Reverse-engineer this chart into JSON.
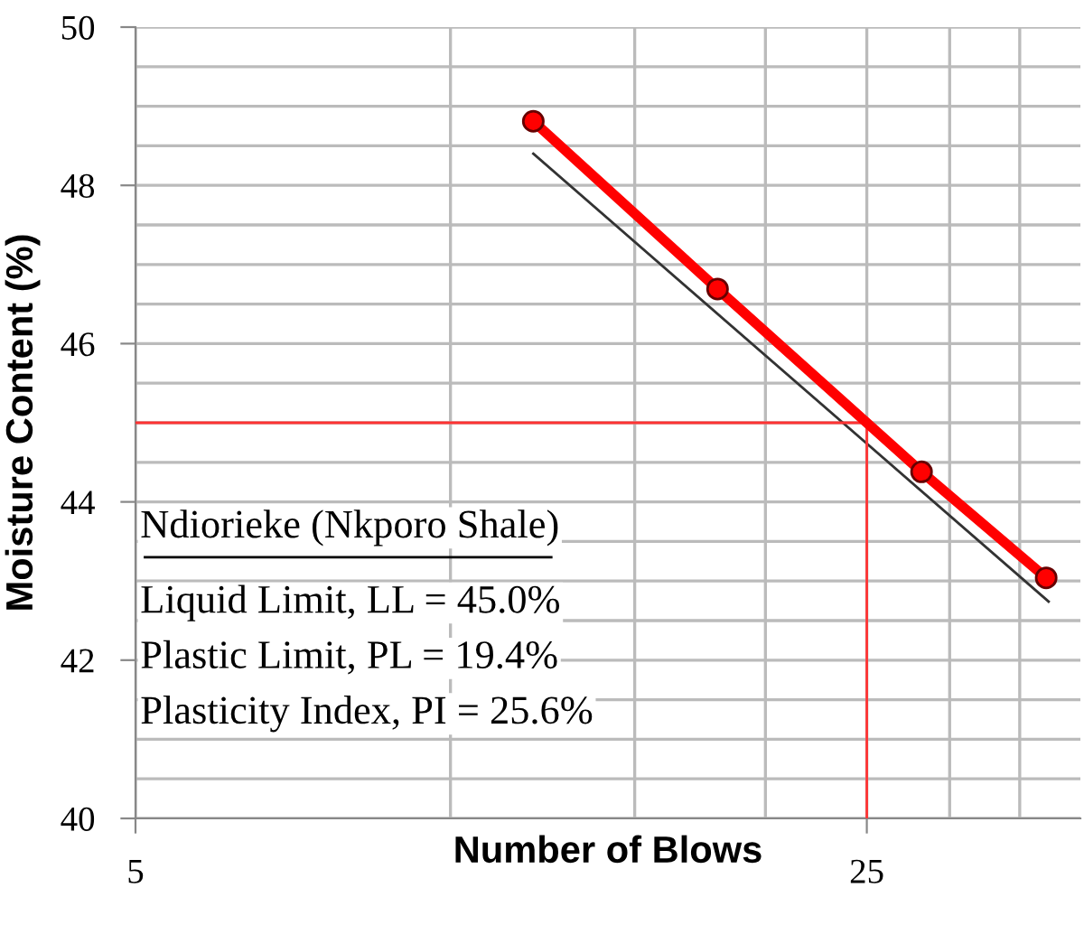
{
  "chart_data": {
    "type": "line",
    "xlabel": "Number of Blows",
    "ylabel": "Moisture Content (%)",
    "log": "x",
    "xlim": [
      5,
      40
    ],
    "xticks": [
      5,
      {
        "value": 10,
        "label": null
      },
      {
        "value": 15,
        "label": null
      },
      {
        "value": 20,
        "label": null
      },
      25,
      {
        "value": 30,
        "label": null
      },
      {
        "value": 35,
        "label": null
      }
    ],
    "ylim": [
      40,
      50
    ],
    "yticks": [
      40,
      {
        "value": 40.5,
        "label": null
      },
      {
        "value": 41,
        "label": null
      },
      {
        "value": 41.5,
        "label": null
      },
      42,
      {
        "value": 42.5,
        "label": null
      },
      {
        "value": 43,
        "label": null
      },
      {
        "value": 43.5,
        "label": null
      },
      44,
      {
        "value": 44.5,
        "label": null
      },
      {
        "value": 45,
        "label": null
      },
      {
        "value": 45.5,
        "label": null
      },
      46,
      {
        "value": 46.5,
        "label": null
      },
      {
        "value": 47,
        "label": null
      },
      {
        "value": 47.5,
        "label": null
      },
      48,
      {
        "value": 48.5,
        "label": null
      },
      {
        "value": 49,
        "label": null
      },
      {
        "value": 49.5,
        "label": null
      },
      50
    ],
    "grid": true,
    "series": [
      {
        "x": [
          12,
          18,
          28.2,
          37.1
        ],
        "values": [
          48.81,
          46.69,
          44.38,
          43.04
        ],
        "color": "#ff0000",
        "marker": "circle"
      },
      {
        "x": [
          12,
          37.3
        ],
        "values": [
          48.4,
          42.74
        ],
        "color": "#333333",
        "marker": "none"
      },
      {
        "x": [
          5,
          25
        ],
        "values": [
          45,
          45
        ],
        "color": "#ff3333",
        "marker": "none"
      },
      {
        "x": [
          25,
          25
        ],
        "values": [
          40,
          45
        ],
        "color": "#ff3333",
        "marker": "none"
      }
    ],
    "annotations": [
      "Ndiorieke (Nkporo Shale)",
      "Liquid Limit, LL = 45.0%",
      "Plastic Limit, PL = 19.4%",
      "Plasticity Index, PI = 25.6%"
    ]
  }
}
